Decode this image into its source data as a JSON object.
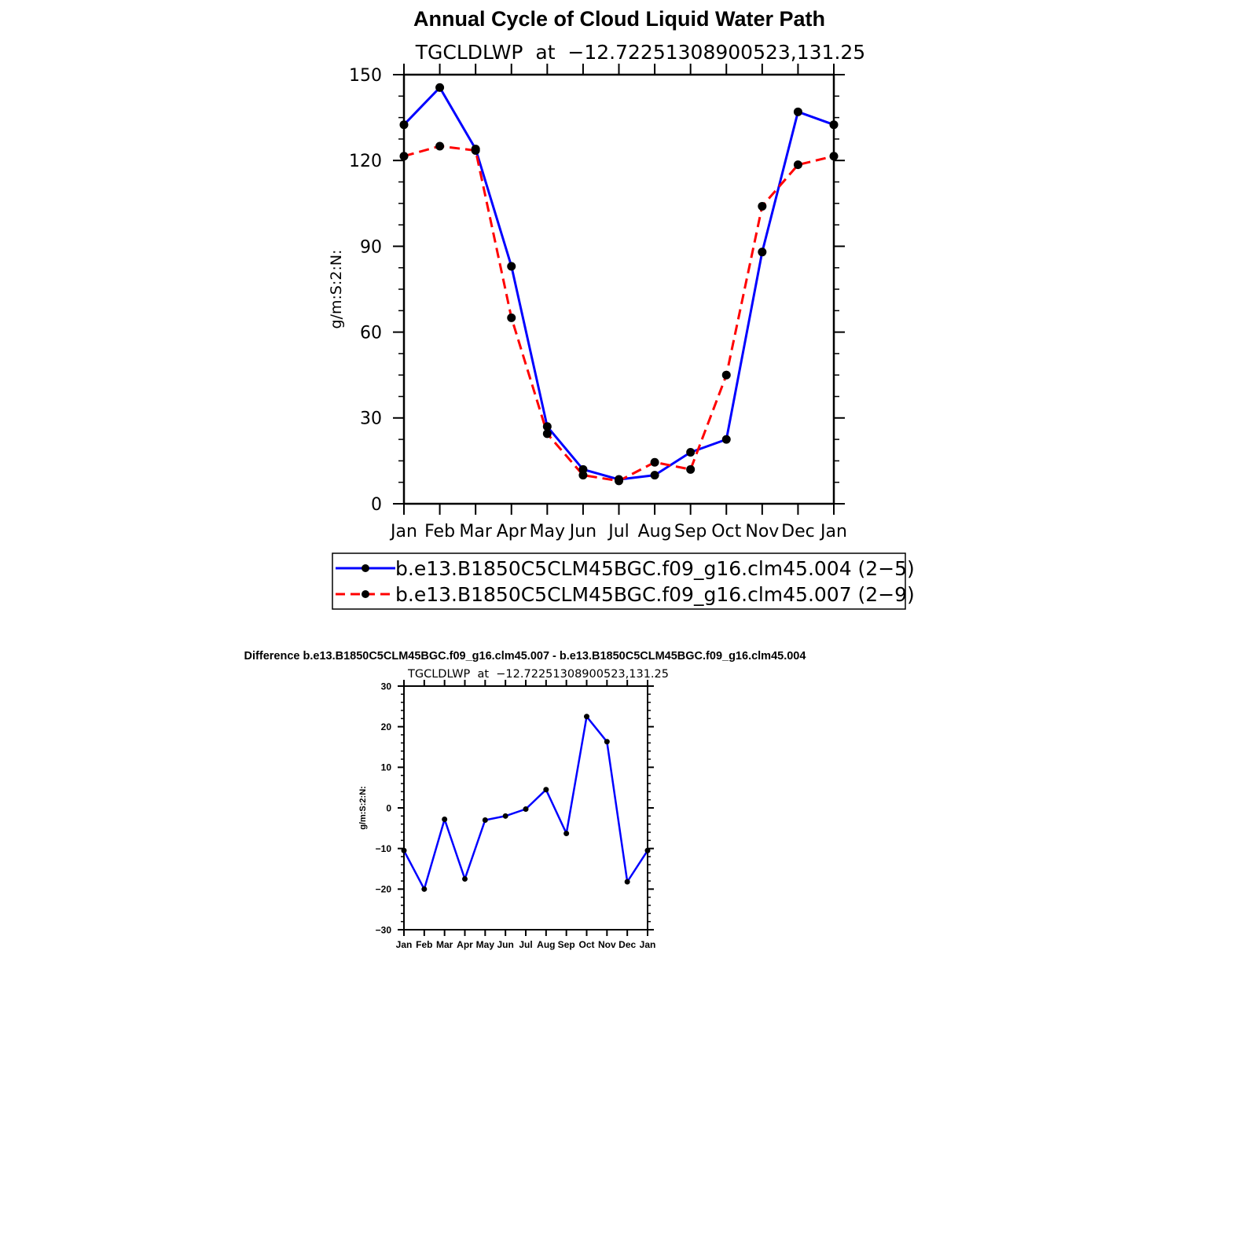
{
  "chart_data": [
    {
      "type": "line",
      "title": "Annual Cycle of Cloud Liquid Water Path",
      "subtitle": "TGCLDLWP  at  −12.72251308900523,131.25",
      "ylabel": "g/m:S:2:N:",
      "xlabel": "",
      "ylim": [
        0,
        150
      ],
      "yticks": [
        "0",
        "30",
        "60",
        "90",
        "120",
        "150"
      ],
      "categories": [
        "Jan",
        "Feb",
        "Mar",
        "Apr",
        "May",
        "Jun",
        "Jul",
        "Aug",
        "Sep",
        "Oct",
        "Nov",
        "Dec",
        "Jan"
      ],
      "grid": false,
      "legend_position": "below",
      "series": [
        {
          "name": "b.e13.B1850C5CLM45BGC.f09_g16.clm45.004 (2−5)",
          "color": "#0000ff",
          "dash": "solid",
          "values": [
            132.5,
            145.5,
            124,
            83,
            27,
            12,
            8.5,
            10,
            18,
            22.5,
            88,
            137,
            132.5
          ]
        },
        {
          "name": "b.e13.B1850C5CLM45BGC.f09_g16.clm45.007 (2−9)",
          "color": "#ff0000",
          "dash": "dashed",
          "values": [
            121.5,
            125,
            123.5,
            65,
            24.5,
            10,
            8,
            14.5,
            12,
            45,
            104,
            118.5,
            121.5
          ]
        }
      ]
    },
    {
      "type": "line",
      "title": "Difference b.e13.B1850C5CLM45BGC.f09_g16.clm45.007 - b.e13.B1850C5CLM45BGC.f09_g16.clm45.004",
      "subtitle": "TGCLDLWP  at  −12.72251308900523,131.25",
      "ylabel": "g/m:S:2:N:",
      "xlabel": "",
      "ylim": [
        -30,
        30
      ],
      "yticks": [
        "−30",
        "−20",
        "−10",
        "0",
        "10",
        "20",
        "30"
      ],
      "categories": [
        "Jan",
        "Feb",
        "Mar",
        "Apr",
        "May",
        "Jun",
        "Jul",
        "Aug",
        "Sep",
        "Oct",
        "Nov",
        "Dec",
        "Jan"
      ],
      "grid": false,
      "series": [
        {
          "color": "#0000ff",
          "dash": "solid",
          "values": [
            -10.5,
            -20,
            -2.8,
            -17.5,
            -3,
            -2,
            -0.3,
            4.5,
            -6.3,
            22.5,
            16.3,
            -18.2,
            -10.5
          ]
        }
      ]
    }
  ]
}
